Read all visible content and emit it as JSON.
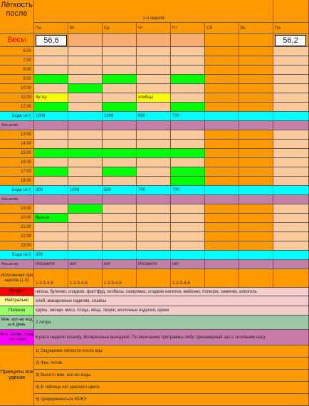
{
  "header": {
    "title_text": "Лёгкость после",
    "week_label": "1-я неделя",
    "days": [
      "Пн",
      "Вт",
      "Ср",
      "Чт",
      "Пт",
      "Сб",
      "Вс"
    ],
    "next_day": "Пн",
    "weight_label": "Весы",
    "weight_mon": "56,6",
    "weight_next": "56,2"
  },
  "hours_a": [
    "6:00",
    "7:00",
    "8:00",
    "9:00",
    "10:00",
    "11:00",
    "12:00"
  ],
  "hours_b": [
    "13:00",
    "14:00",
    "15:00",
    "16:00",
    "17:00",
    "18:00"
  ],
  "hours_c": [
    "19:00",
    "20:00",
    "21:00",
    "22:00",
    "23:00"
  ],
  "labels": {
    "water": "Вода (мл)",
    "activity": "Физ.актив."
  },
  "notes": {
    "row_11": [
      "бутер",
      "",
      "",
      "хлебцы",
      "",
      "",
      ""
    ],
    "row_20": [
      "бульон",
      "",
      "",
      "",
      "",
      "",
      ""
    ]
  },
  "water_1": [
    "1000",
    "",
    "1000",
    "600",
    "700",
    "",
    ""
  ],
  "water_2": [
    "300",
    "1000",
    "500",
    "700",
    "700",
    "",
    ""
  ],
  "water_3": [
    "300",
    "",
    "",
    "",
    "",
    "",
    ""
  ],
  "activity_3": [
    "Инсанити",
    "нет",
    "нет",
    "Инсанити",
    "нет",
    "",
    ""
  ],
  "principles_row": {
    "label": "Исполнение принципов (1-5)",
    "values": [
      "1-2-3-4-5",
      "1-2-3-4-5",
      "1-2-3-4-5",
      "",
      "1-2-3-4-5",
      "",
      ""
    ]
  },
  "legend": {
    "harmful_label": "Вредно",
    "harmful_text": "чипсы, булочки, сладкое, фастфуд, колбасы, газировка, сладкие напитки, майонез, попкорн, семечки, алкоголь",
    "neutral_label": "Нейтрально",
    "neutral_text": "хлеб, макаронные изделия, слайсы",
    "useful_label": "Полезно",
    "useful_text": "крупы, овощи, мясо, птица, яйца, творог, молочные изделия, орехи",
    "water_min_label": "Мин. кол-во воды в день",
    "water_min_text": "2 литра",
    "activity_label": "Физ. Актив. предпочтения",
    "activity_text": "6 раз в неделю Insanity. Воскресенье выходной. По окончанию программы либо тренажерный зал с силовыми нагр"
  },
  "principles": {
    "title": "Принципы похудения",
    "items": [
      "1) Ощущение лёгкости после еды",
      "2) Физ. Актив.",
      "3) Выпито мин. кол-во воды",
      "4) В таблице нет красного цвета",
      "5) придерживаться КБЖУ"
    ]
  },
  "colors": {
    "orange": "#ff9900",
    "peach": "#fbc99b",
    "light_peach": "#f6ad73",
    "green": "#00ff00",
    "yellow": "#ffff00",
    "cyan": "#00ffff",
    "mauve": "#c37fa7",
    "red": "#ff0000",
    "light_yellow": "#ffff99",
    "light_green": "#99ff66",
    "grey_green": "#9cc8a6",
    "magenta": "#ff00ff",
    "purple_pink": "#c97aa8",
    "legend_bg": "#f4cccc"
  }
}
